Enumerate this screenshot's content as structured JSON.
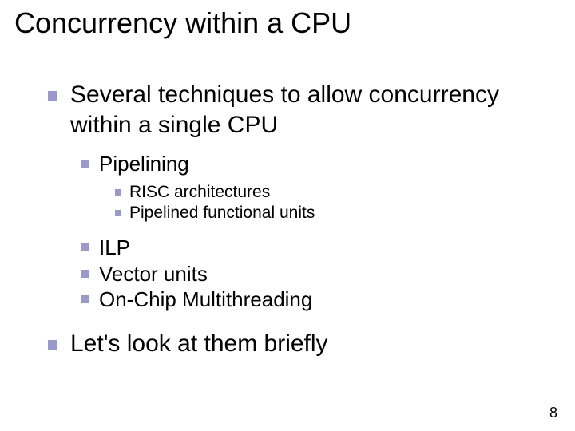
{
  "title": "Concurrency within a CPU",
  "bullets": {
    "l1a": "Several techniques to allow concurrency within a single CPU",
    "l2a": "Pipelining",
    "l3a": "RISC architectures",
    "l3b": "Pipelined functional units",
    "l2b": "ILP",
    "l2c": "Vector units",
    "l2d": "On-Chip Multithreading",
    "l1b": "Let's look at them briefly"
  },
  "page_number": "8",
  "colors": {
    "bullet": "#9999cc",
    "text": "#000000",
    "background": "#ffffff"
  },
  "fontsizes": {
    "title": 36,
    "l1": 30,
    "l2": 26,
    "l3": 21
  }
}
